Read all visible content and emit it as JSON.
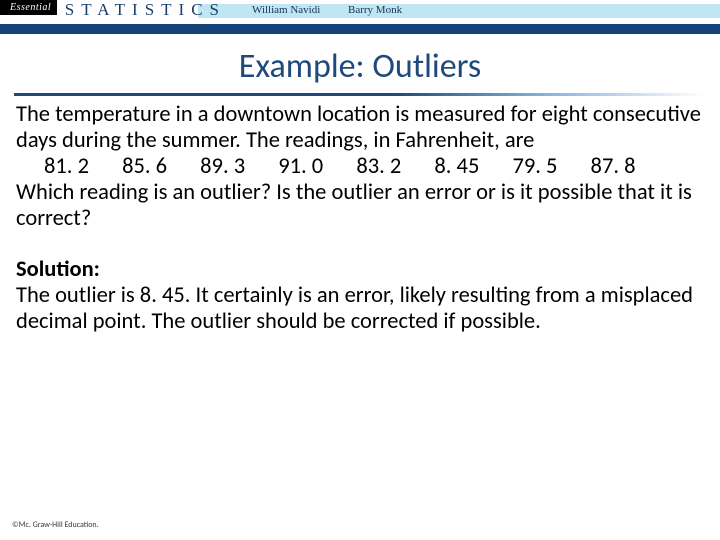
{
  "header": {
    "essential_label": "Essential",
    "stats_label": "STATISTICS",
    "author1": "William Navidi",
    "author2": "Barry Monk",
    "colors": {
      "cyan_stripe": "#bfe6f2",
      "dark_stripe": "#16427a",
      "title_color": "#1f497d"
    }
  },
  "slide": {
    "title": "Example: Outliers",
    "problem_intro": "The temperature in a downtown location is measured for eight consecutive days during the summer. The readings, in Fahrenheit, are",
    "data_values": [
      "81. 2",
      "85. 6",
      "89. 3",
      "91. 0",
      "83. 2",
      "8. 45",
      "79. 5",
      "87. 8"
    ],
    "problem_question": "Which reading is an outlier? Is the outlier an error or is it possible that it is correct?",
    "solution_label": "Solution:",
    "solution_text": "The outlier is 8. 45. It certainly is an error, likely resulting from a misplaced decimal point. The outlier should be corrected if possible."
  },
  "footer": {
    "copyright": "©Mc. Graw-Hill Education."
  }
}
